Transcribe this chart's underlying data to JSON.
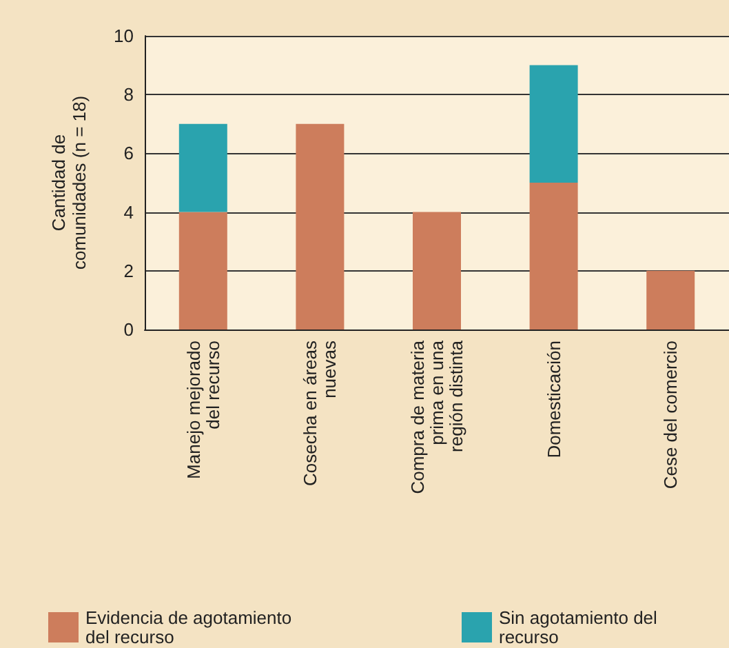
{
  "chart_data": {
    "type": "bar",
    "ylabel": "Cantidad de\ncomunidades (n = 18)",
    "categories": [
      "Manejo mejorado\ndel recurso",
      "Cosecha en áreas\nnuevas",
      "Compra de materia\nprima en una\nregión distinta",
      "Domesticación",
      "Cese del comercio"
    ],
    "series": [
      {
        "name": "Evidencia de agotamiento\ndel recurso",
        "color": "#cd7d5c",
        "values": [
          4,
          7,
          4,
          5,
          2
        ]
      },
      {
        "name": "Sin agotamiento del\nrecurso",
        "color": "#2aa3ae",
        "values": [
          3,
          0,
          0,
          4,
          0
        ]
      }
    ],
    "stacked": true,
    "ylim": [
      0,
      10
    ],
    "yticks": [
      0,
      2,
      4,
      6,
      8,
      10
    ],
    "grid": "y",
    "legend": "bottom"
  }
}
